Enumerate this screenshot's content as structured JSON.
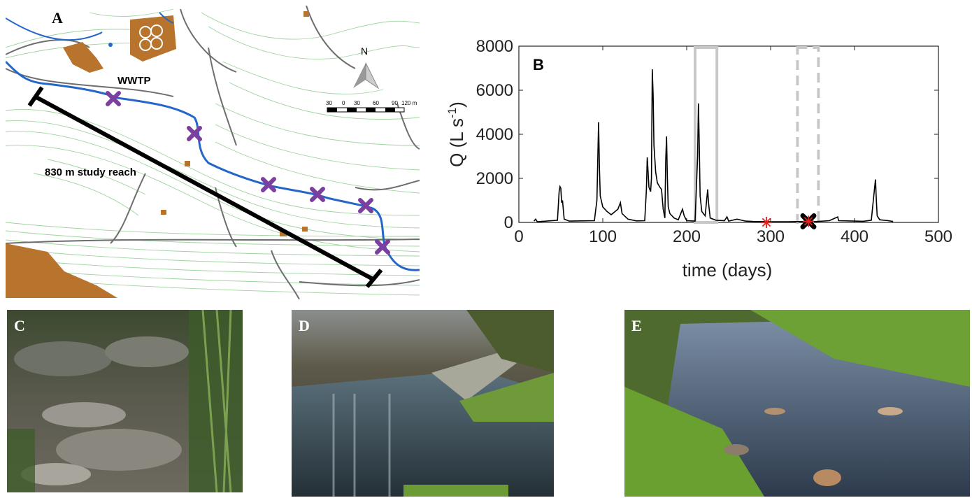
{
  "map": {
    "label": "A",
    "wwtp_label": "WWTP",
    "reach_label": "830 m study reach",
    "north_label": "N",
    "scale_ticks": [
      "30",
      "0",
      "30",
      "60",
      "90",
      "120 m"
    ],
    "colors": {
      "river": "#2566c9",
      "contour": "#8fcf8f",
      "road": "#6a6a6a",
      "building": "#b8742c",
      "marker": "#7b3fa0"
    },
    "icons": [
      "north-arrow-icon",
      "sampling-site-marker"
    ]
  },
  "chart_data": {
    "type": "line",
    "panel_label": "B",
    "xlabel": "time (days)",
    "ylabel": "Q (L s",
    "ylabel_sup": "-1",
    "ylabel_close": ")",
    "xlim": [
      0,
      500
    ],
    "ylim": [
      0,
      8000
    ],
    "xticks": [
      0,
      100,
      200,
      300,
      400,
      500
    ],
    "yticks": [
      0,
      2000,
      4000,
      6000,
      8000
    ],
    "grid": false,
    "series": [
      {
        "points": [
          [
            18,
            60
          ],
          [
            20,
            150
          ],
          [
            22,
            30
          ],
          [
            46,
            100
          ],
          [
            48,
            1400
          ],
          [
            49,
            1630
          ],
          [
            50,
            1550
          ],
          [
            51,
            900
          ],
          [
            52,
            1000
          ],
          [
            54,
            150
          ],
          [
            60,
            60
          ],
          [
            90,
            80
          ],
          [
            93,
            1000
          ],
          [
            95,
            4550
          ],
          [
            96,
            2500
          ],
          [
            97,
            1200
          ],
          [
            100,
            700
          ],
          [
            105,
            500
          ],
          [
            110,
            350
          ],
          [
            118,
            600
          ],
          [
            121,
            900
          ],
          [
            123,
            400
          ],
          [
            130,
            150
          ],
          [
            140,
            70
          ],
          [
            150,
            80
          ],
          [
            152,
            1500
          ],
          [
            153,
            2950
          ],
          [
            154,
            2300
          ],
          [
            155,
            1600
          ],
          [
            157,
            1400
          ],
          [
            158,
            2000
          ],
          [
            159,
            6950
          ],
          [
            160,
            5800
          ],
          [
            161,
            3500
          ],
          [
            163,
            2300
          ],
          [
            165,
            1800
          ],
          [
            168,
            1600
          ],
          [
            170,
            1500
          ],
          [
            172,
            600
          ],
          [
            174,
            200
          ],
          [
            175,
            2800
          ],
          [
            176,
            3900
          ],
          [
            177,
            2000
          ],
          [
            178,
            700
          ],
          [
            180,
            400
          ],
          [
            185,
            200
          ],
          [
            190,
            120
          ],
          [
            195,
            600
          ],
          [
            197,
            300
          ],
          [
            200,
            80
          ],
          [
            210,
            60
          ],
          [
            213,
            3000
          ],
          [
            214,
            5400
          ],
          [
            215,
            3500
          ],
          [
            216,
            1200
          ],
          [
            218,
            500
          ],
          [
            222,
            300
          ],
          [
            225,
            1500
          ],
          [
            226,
            900
          ],
          [
            228,
            200
          ],
          [
            235,
            100
          ],
          [
            245,
            80
          ],
          [
            248,
            250
          ],
          [
            250,
            60
          ],
          [
            260,
            150
          ],
          [
            270,
            60
          ],
          [
            280,
            40
          ],
          [
            300,
            30
          ],
          [
            320,
            30
          ],
          [
            340,
            40
          ],
          [
            350,
            30
          ],
          [
            370,
            80
          ],
          [
            380,
            250
          ],
          [
            381,
            80
          ],
          [
            400,
            60
          ],
          [
            410,
            50
          ],
          [
            420,
            100
          ],
          [
            424,
            1600
          ],
          [
            425,
            1950
          ],
          [
            426,
            1000
          ],
          [
            427,
            300
          ],
          [
            430,
            120
          ],
          [
            440,
            80
          ],
          [
            446,
            40
          ]
        ],
        "color": "#000000"
      }
    ],
    "markers": [
      {
        "x": 295,
        "y": 0,
        "symbol": "red-asterisk",
        "color": "#e0201c"
      },
      {
        "x": 345,
        "y": 50,
        "symbol": "black-x-with-red-asterisk",
        "color": "#000000"
      }
    ],
    "highlight_boxes": [
      {
        "x_start": 210,
        "x_end": 236,
        "style": "solid",
        "color": "#c8c8c8"
      },
      {
        "x_start": 332,
        "x_end": 357,
        "style": "dashed",
        "color": "#c8c8c8"
      }
    ]
  },
  "photos": [
    {
      "label": "C",
      "scene": "dry-streambed"
    },
    {
      "label": "D",
      "scene": "wwtp-outfall"
    },
    {
      "label": "E",
      "scene": "flowing-stream"
    }
  ]
}
